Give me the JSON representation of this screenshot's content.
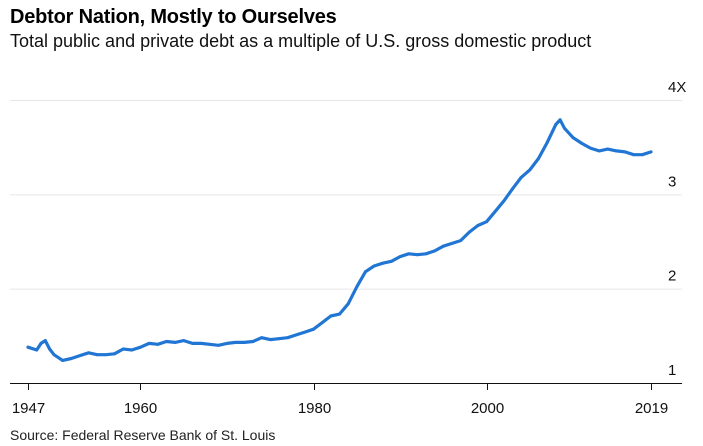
{
  "title": "Debtor Nation, Mostly to Ourselves",
  "subtitle": "Total public and private debt as a multiple of U.S. gross domestic product",
  "source": "Source: Federal Reserve Bank of St. Louis",
  "colors": {
    "line": "#2176d4",
    "grid": "#e6e6e6",
    "axis": "#111111"
  },
  "chart_data": {
    "type": "line",
    "title": "Debtor Nation, Mostly to Ourselves",
    "subtitle": "Total public and private debt as a multiple of U.S. gross domestic product",
    "xlabel": "",
    "ylabel": "",
    "xlim": [
      1947,
      2019
    ],
    "ylim": [
      1,
      4
    ],
    "x_ticks": [
      1947,
      1960,
      1980,
      2000,
      2019
    ],
    "x_tick_labels": [
      "1947",
      "1960",
      "1980",
      "2000",
      "2019"
    ],
    "y_ticks": [
      1,
      2,
      3,
      4
    ],
    "y_tick_labels": [
      "1",
      "2",
      "3",
      "4X"
    ],
    "grid": true,
    "series": [
      {
        "values": [
          [
            1947.0,
            1.38
          ],
          [
            1948.0,
            1.35
          ],
          [
            1948.5,
            1.42
          ],
          [
            1949.0,
            1.45
          ],
          [
            1949.5,
            1.36
          ],
          [
            1950.0,
            1.3
          ],
          [
            1951.0,
            1.24
          ],
          [
            1952.0,
            1.26
          ],
          [
            1953.0,
            1.29
          ],
          [
            1954.0,
            1.32
          ],
          [
            1955.0,
            1.3
          ],
          [
            1956.0,
            1.3
          ],
          [
            1957.0,
            1.31
          ],
          [
            1958.0,
            1.36
          ],
          [
            1959.0,
            1.35
          ],
          [
            1960.0,
            1.38
          ],
          [
            1961.0,
            1.42
          ],
          [
            1962.0,
            1.41
          ],
          [
            1963.0,
            1.44
          ],
          [
            1964.0,
            1.43
          ],
          [
            1965.0,
            1.45
          ],
          [
            1966.0,
            1.42
          ],
          [
            1967.0,
            1.42
          ],
          [
            1968.0,
            1.41
          ],
          [
            1969.0,
            1.4
          ],
          [
            1970.0,
            1.42
          ],
          [
            1971.0,
            1.43
          ],
          [
            1972.0,
            1.43
          ],
          [
            1973.0,
            1.44
          ],
          [
            1974.0,
            1.48
          ],
          [
            1975.0,
            1.46
          ],
          [
            1976.0,
            1.47
          ],
          [
            1977.0,
            1.48
          ],
          [
            1978.0,
            1.51
          ],
          [
            1979.0,
            1.54
          ],
          [
            1980.0,
            1.57
          ],
          [
            1981.0,
            1.64
          ],
          [
            1982.0,
            1.71
          ],
          [
            1983.0,
            1.73
          ],
          [
            1984.0,
            1.84
          ],
          [
            1985.0,
            2.02
          ],
          [
            1986.0,
            2.18
          ],
          [
            1987.0,
            2.24
          ],
          [
            1988.0,
            2.27
          ],
          [
            1989.0,
            2.29
          ],
          [
            1990.0,
            2.34
          ],
          [
            1991.0,
            2.37
          ],
          [
            1992.0,
            2.36
          ],
          [
            1993.0,
            2.37
          ],
          [
            1994.0,
            2.4
          ],
          [
            1995.0,
            2.45
          ],
          [
            1996.0,
            2.48
          ],
          [
            1997.0,
            2.51
          ],
          [
            1998.0,
            2.6
          ],
          [
            1999.0,
            2.67
          ],
          [
            2000.0,
            2.71
          ],
          [
            2001.0,
            2.82
          ],
          [
            2002.0,
            2.93
          ],
          [
            2003.0,
            3.06
          ],
          [
            2004.0,
            3.18
          ],
          [
            2005.0,
            3.26
          ],
          [
            2006.0,
            3.38
          ],
          [
            2007.0,
            3.55
          ],
          [
            2008.0,
            3.74
          ],
          [
            2008.5,
            3.79
          ],
          [
            2009.0,
            3.7
          ],
          [
            2010.0,
            3.6
          ],
          [
            2011.0,
            3.54
          ],
          [
            2012.0,
            3.49
          ],
          [
            2013.0,
            3.46
          ],
          [
            2014.0,
            3.48
          ],
          [
            2015.0,
            3.46
          ],
          [
            2016.0,
            3.45
          ],
          [
            2017.0,
            3.42
          ],
          [
            2018.0,
            3.42
          ],
          [
            2019.0,
            3.45
          ]
        ]
      }
    ]
  }
}
